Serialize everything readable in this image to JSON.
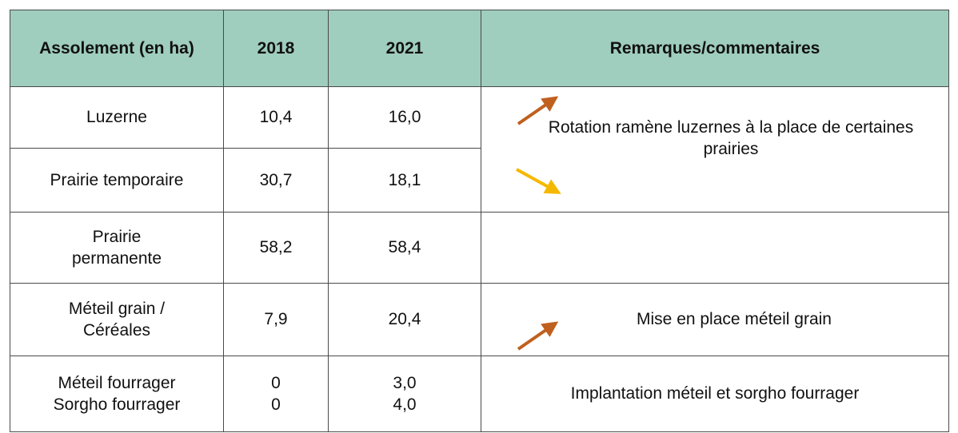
{
  "table": {
    "header": [
      "Assolement (en ha)",
      "2018",
      "2021",
      "Remarques/commentaires"
    ],
    "rows": [
      [
        "Luzerne",
        "10,4",
        "16,0",
        "Rotation ramène luzernes à la place de certaines prairies"
      ],
      [
        "Prairie temporaire",
        "30,7",
        "18,1"
      ],
      [
        "Prairie permanente",
        "58,2",
        "58,4"
      ],
      [
        "Méteil grain / Céréales",
        "7,9",
        "20,4",
        "Mise en place méteil grain"
      ],
      [
        [
          "Méteil fourrager",
          "Sorgho fourrager"
        ],
        [
          "0",
          "0"
        ],
        [
          "3,0",
          "4,0"
        ],
        "Implantation méteil et sorgho fourrager"
      ]
    ]
  }
}
